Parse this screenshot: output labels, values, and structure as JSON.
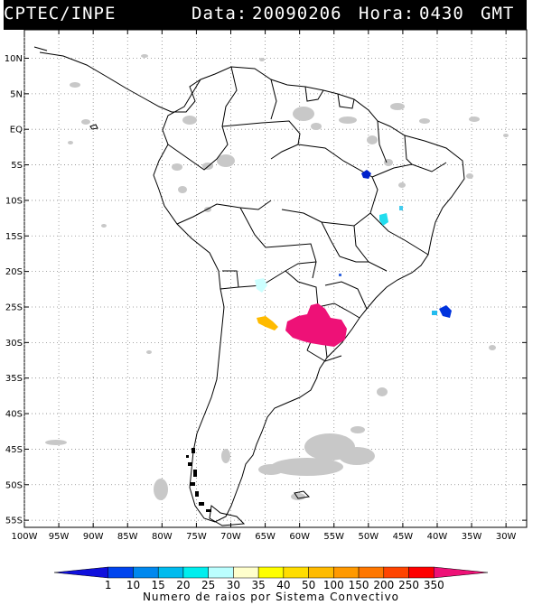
{
  "header": {
    "source": "CPTEC/INPE",
    "date_label": "Data:",
    "date_value": "20090206",
    "time_label": "Hora:",
    "time_value": "0430",
    "tz": "GMT"
  },
  "map": {
    "lat_range": [
      -56,
      14
    ],
    "lon_range": [
      -100,
      -27
    ],
    "lat_ticks": [
      10,
      5,
      0,
      -5,
      -10,
      -15,
      -20,
      -25,
      -30,
      -35,
      -40,
      -45,
      -50,
      -55
    ],
    "lat_labels": [
      "10N",
      "5N",
      "EQ",
      "5S",
      "10S",
      "15S",
      "20S",
      "25S",
      "30S",
      "35S",
      "40S",
      "45S",
      "50S",
      "55S"
    ],
    "lon_ticks": [
      -100,
      -95,
      -90,
      -85,
      -80,
      -75,
      -70,
      -65,
      -60,
      -55,
      -50,
      -45,
      -40,
      -35,
      -30
    ],
    "lon_labels": [
      "100W",
      "95W",
      "90W",
      "85W",
      "80W",
      "75W",
      "70W",
      "65W",
      "60W",
      "55W",
      "50W",
      "45W",
      "40W",
      "35W",
      "30W"
    ],
    "grid": true,
    "features": [
      {
        "name": "convective-system-paraguay-argentina",
        "lat": -28.5,
        "lon": -57.5,
        "class": "350",
        "color": "#ee1177"
      },
      {
        "name": "convective-system-cordoba",
        "lat": -28.3,
        "lon": -64.0,
        "class": "40-50",
        "color": "#ffbb00"
      },
      {
        "name": "convective-system-atlantic",
        "lat": -27.0,
        "lon": -38.0,
        "class": "1-15",
        "color": "#0033dd"
      },
      {
        "name": "convective-system-piaui",
        "lat": -8.5,
        "lon": -49.5,
        "class": "1",
        "color": "#0022cc"
      },
      {
        "name": "convective-system-goias",
        "lat": -14.0,
        "lon": -47.0,
        "class": "25",
        "color": "#22ddee"
      },
      {
        "name": "convective-system-jujuy",
        "lat": -25.5,
        "lon": -65.0,
        "class": "30",
        "color": "#ccffff"
      }
    ]
  },
  "colorbar": {
    "ticks": [
      "1",
      "10",
      "15",
      "20",
      "25",
      "30",
      "35",
      "40",
      "50",
      "100",
      "150",
      "200",
      "250",
      "350"
    ],
    "colors": [
      "#1010dd",
      "#0044ee",
      "#0088ee",
      "#00bbee",
      "#00eeee",
      "#bbffff",
      "#ffffcc",
      "#ffff00",
      "#ffdd00",
      "#ffbb00",
      "#ff9900",
      "#ff7700",
      "#ff4400",
      "#ff0000",
      "#ee1177"
    ],
    "caption": "Numero de raios por Sistema Convectivo"
  }
}
